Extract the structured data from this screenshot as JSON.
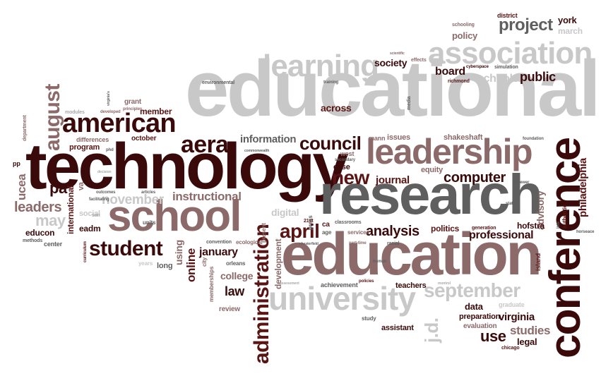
{
  "colors": {
    "dark": "#3a0a0a",
    "maroon": "#5a1414",
    "mauve": "#8c6a6a",
    "gray": "#5f5f5f",
    "lightgray": "#c8c8c8",
    "silver": "#a9a9a9"
  },
  "words": {
    "educational": "educational",
    "technology": "technology",
    "research": "research",
    "education": "education",
    "conference": "conference",
    "leadership": "leadership",
    "school": "school",
    "association": "association",
    "learning": "learning",
    "university": "university",
    "american": "american",
    "administration": "administration",
    "student": "student",
    "september": "september",
    "council": "council",
    "aera": "aera",
    "april": "april",
    "project": "project",
    "august": "august",
    "new": "new",
    "analysis": "analysis",
    "computer": "computer",
    "information": "information",
    "journal": "journal",
    "public": "public",
    "board": "board",
    "schools": "schools",
    "society": "society",
    "instructional": "instructional",
    "november": "november",
    "leaders": "leaders",
    "may": "may",
    "pa": "pa",
    "ucea": "ucea",
    "professional": "professional",
    "philadelphia": "philadelphia",
    "advisory": "advisory",
    "use": "use",
    "virginia": "virginia",
    "studies": "studies",
    "jd": "j.d.",
    "law": "law",
    "college": "college",
    "january": "january",
    "online": "online",
    "using": "using",
    "digital": "digital",
    "development": "development",
    "across": "across",
    "policy": "policy",
    "york": "york",
    "march": "march",
    "district": "district",
    "schooling": "schooling",
    "member": "member",
    "october": "october",
    "program": "program",
    "differences": "differences",
    "grant": "grant",
    "department": "department",
    "modules": "modules",
    "eadm": "eadm",
    "educon": "educon",
    "center": "center",
    "methods": "methods",
    "international": "international",
    "social": "social",
    "units": "units",
    "long": "long",
    "years": "years",
    "city": "city",
    "memberships": "memberships",
    "review": "review",
    "orleans": "orleans",
    "ecological": "ecological",
    "present": "present",
    "convention": "convention",
    "case": "case",
    "equity": "equity",
    "west": "west",
    "secondary": "secondary",
    "issues": "issues",
    "mann": "mann",
    "shakeshaft": "shakeshaft",
    "foundation": "foundation",
    "politics": "politics",
    "services": "services",
    "classrooms": "classrooms",
    "achievement": "achievement",
    "teachers": "teachers",
    "policies": "policies",
    "assistant": "assistant",
    "study": "study",
    "data": "data",
    "preparation": "preparation",
    "evaluation": "evaluation",
    "graduate": "graduate",
    "legal": "legal",
    "chicago": "chicago",
    "hofstra": "hofstra",
    "generation": "generation",
    "island": "island",
    "reviewer": "reviewer",
    "status": "status",
    "richmond": "richmond",
    "simulation": "simulation",
    "cyberspace": "cyberspace",
    "effects": "effects",
    "training": "training",
    "environmental": "environmental",
    "media": "media",
    "developed": "developed",
    "principles": "principles",
    "phd": "phd",
    "facilitating": "facilitating",
    "outcomes": "outcomes",
    "articles": "articles",
    "curriculum": "curriculum",
    "pp": "pp",
    "va": "va",
    "ca": "ca",
    "age": "age",
    "press": "press",
    "21st": "21st",
    "racial": "racial",
    "human": "human",
    "part_time": "part-time",
    "authentic": "authentic",
    "iste": "iste",
    "horseace": "horseace",
    "montrol": "montrol",
    "scientific": "scientific",
    "virginias": "virginia's",
    "san": "san",
    "chesterfield": "chesterfield",
    "decision": "decision",
    "assessment": "assessment",
    "commonwealth": "commonwealth"
  }
}
